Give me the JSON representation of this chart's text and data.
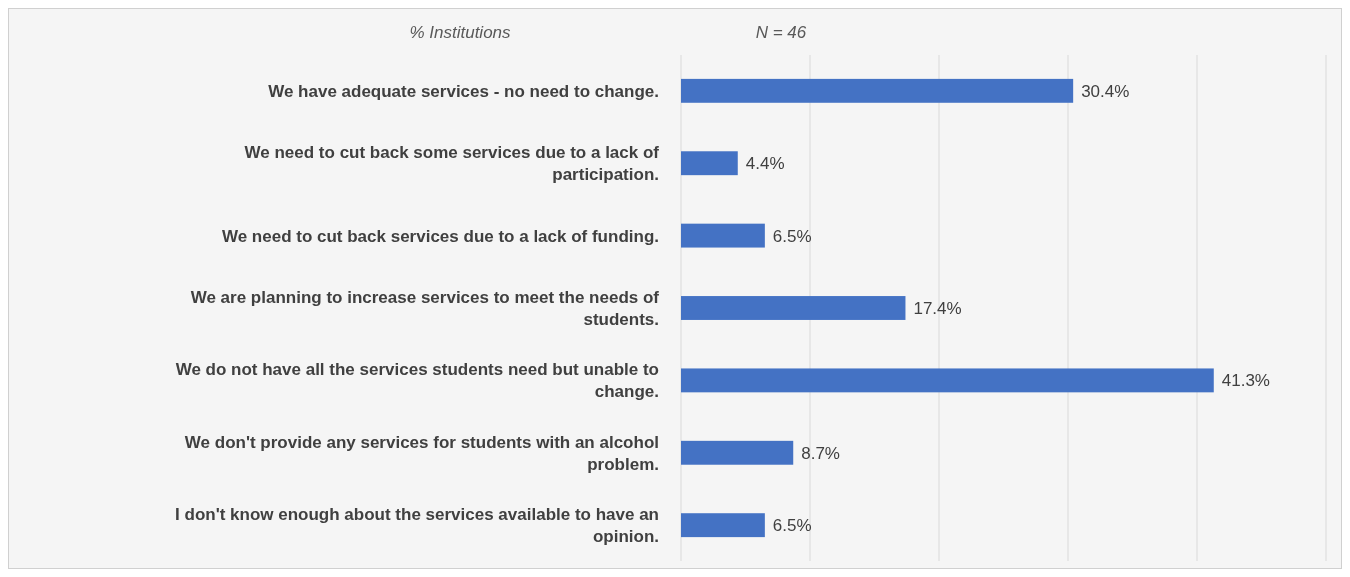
{
  "chart_data": {
    "type": "bar",
    "orientation": "horizontal",
    "xlabel": "% Institutions",
    "annotations": [
      "N = 46"
    ],
    "categories": [
      "We have adequate services - no need to change.",
      "We need to cut back some services due to a lack of participation.",
      "We need to cut back services due to a lack of funding.",
      "We are planning to increase services to meet the needs of students.",
      "We do not have all the services students need but unable to change.",
      "We don't provide any services for students with an alcohol problem.",
      "I don't know enough about the services available to have an opinion."
    ],
    "values": [
      30.4,
      4.4,
      6.5,
      17.4,
      41.3,
      8.7,
      6.5
    ],
    "value_labels": [
      "30.4%",
      "4.4%",
      "6.5%",
      "17.4%",
      "41.3%",
      "8.7%",
      "6.5%"
    ],
    "color": "#4472c4",
    "xlim": [
      0,
      50
    ],
    "xticks": [
      {
        "value": 0,
        "label": null
      },
      {
        "value": 10,
        "label": null
      },
      {
        "value": 20,
        "label": null
      },
      {
        "value": 30,
        "label": null
      },
      {
        "value": 40,
        "label": null
      },
      {
        "value": 50,
        "label": null
      }
    ],
    "tick_labels": "y",
    "grid": "x"
  }
}
